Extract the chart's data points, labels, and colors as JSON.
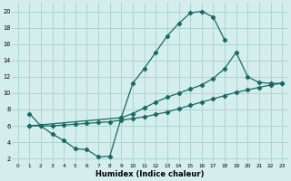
{
  "xlabel": "Humidex (Indice chaleur)",
  "bg_color": "#d4eeed",
  "grid_color": "#aed4d0",
  "line_color": "#1a6b5e",
  "xlim": [
    -0.5,
    23.5
  ],
  "ylim": [
    1.5,
    21
  ],
  "xticks": [
    0,
    1,
    2,
    3,
    4,
    5,
    6,
    7,
    8,
    9,
    10,
    11,
    12,
    13,
    14,
    15,
    16,
    17,
    18,
    19,
    20,
    21,
    22,
    23
  ],
  "yticks": [
    2,
    4,
    6,
    8,
    10,
    12,
    14,
    16,
    18,
    20
  ],
  "line1_x": [
    1,
    2,
    3,
    4,
    5,
    6,
    7,
    8,
    9,
    10,
    11,
    12,
    13,
    14,
    15,
    16,
    17,
    18
  ],
  "line1_y": [
    7.5,
    6.0,
    5.0,
    4.2,
    3.2,
    3.1,
    2.2,
    2.3,
    7.0,
    11.2,
    13.0,
    15.0,
    17.0,
    18.5,
    19.8,
    20.0,
    19.3,
    16.5
  ],
  "line2_x": [
    1,
    2,
    3,
    4,
    5,
    6,
    7,
    8,
    9,
    10,
    11,
    12,
    13,
    14,
    15,
    16,
    17,
    18,
    19,
    20,
    21,
    22,
    23
  ],
  "line2_y": [
    6.0,
    6.0,
    6.0,
    6.1,
    6.2,
    6.3,
    6.4,
    6.5,
    6.7,
    6.9,
    7.1,
    7.4,
    7.7,
    8.1,
    8.5,
    8.9,
    9.3,
    9.7,
    10.1,
    10.4,
    10.7,
    11.0,
    11.2
  ],
  "line3_x": [
    1,
    9,
    10,
    11,
    12,
    13,
    14,
    15,
    16,
    17,
    18,
    19,
    20,
    21,
    22,
    23
  ],
  "line3_y": [
    6.0,
    7.0,
    7.5,
    8.2,
    8.9,
    9.5,
    10.0,
    10.5,
    11.0,
    11.8,
    13.0,
    15.0,
    12.0,
    11.3,
    11.2,
    11.2
  ]
}
